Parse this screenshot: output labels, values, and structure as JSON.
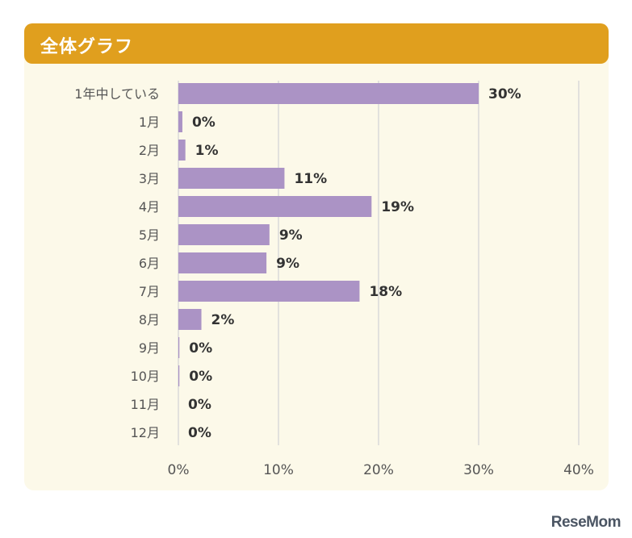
{
  "header": {
    "title": "全体グラフ"
  },
  "brand": {
    "name": "ReseMom"
  },
  "colors": {
    "header": "#e09f1e",
    "panel": "#fcf9e9",
    "bar": "#ab93c5",
    "grid": "#d9d9d9",
    "category_text": "#555555",
    "value_text": "#333333"
  },
  "chart_data": {
    "type": "bar",
    "orientation": "horizontal",
    "categories": [
      "1年中している",
      "1月",
      "2月",
      "3月",
      "4月",
      "5月",
      "6月",
      "7月",
      "8月",
      "9月",
      "10月",
      "11月",
      "12月"
    ],
    "values": [
      30,
      0.4,
      0.7,
      10.6,
      19.3,
      9.1,
      8.8,
      18.1,
      2.3,
      0.1,
      0.1,
      0,
      0
    ],
    "value_labels": [
      "30%",
      "0%",
      "1%",
      "11%",
      "19%",
      "9%",
      "9%",
      "18%",
      "2%",
      "0%",
      "0%",
      "0%",
      "0%"
    ],
    "x_ticks": [
      "0%",
      "10%",
      "20%",
      "30%",
      "40%"
    ],
    "xlim": [
      0,
      40
    ],
    "grid": true,
    "title": "",
    "xlabel": "",
    "ylabel": ""
  }
}
